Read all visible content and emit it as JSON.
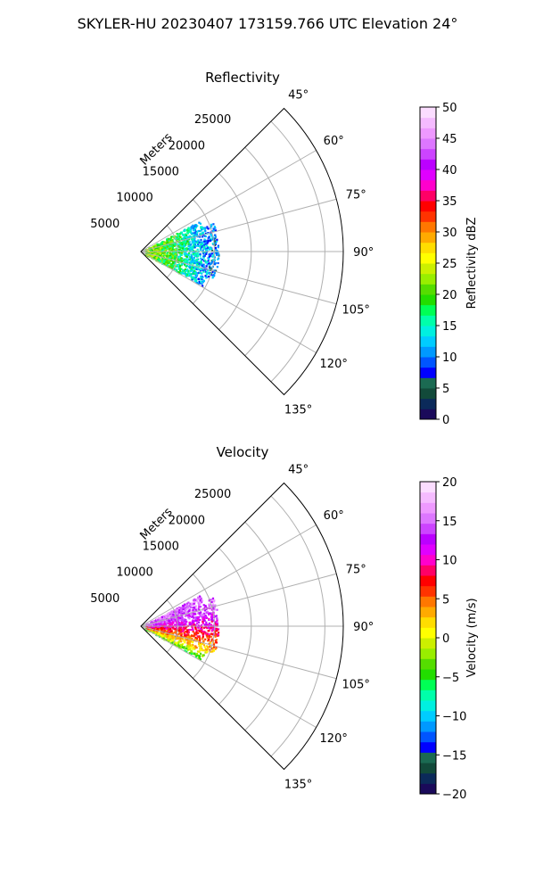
{
  "figure": {
    "suptitle": "SKYLER-HU  20230407  173159.766 UTC Elevation 24°"
  },
  "chart_data": [
    {
      "type": "heatmap",
      "subtype": "polar-sector",
      "title": "Reflectivity",
      "range_label": "Meters",
      "range_ticks": [
        5000,
        10000,
        15000,
        20000,
        25000
      ],
      "range_max": 27500,
      "azimuth_ticks": [
        "45°",
        "60°",
        "75°",
        "90°",
        "105°",
        "120°",
        "135°"
      ],
      "azimuth_range_deg": [
        45,
        135
      ],
      "grid": true,
      "colorbar": {
        "label": "Reflectivity dBZ",
        "ticks": [
          "0",
          "5",
          "10",
          "15",
          "20",
          "25",
          "30",
          "35",
          "40",
          "45",
          "50"
        ],
        "range": [
          0,
          50
        ],
        "colors": [
          "#1a0a5a",
          "#0b2a5a",
          "#124a3a",
          "#1b6a52",
          "#0000ff",
          "#0055ff",
          "#0099ff",
          "#00ccff",
          "#00f0e0",
          "#00ffaa",
          "#00ff55",
          "#22dd00",
          "#55dd00",
          "#99ee00",
          "#ccf000",
          "#ffff00",
          "#ffdd00",
          "#ffaa00",
          "#ff7700",
          "#ff3300",
          "#ff0000",
          "#ff0066",
          "#ff00cc",
          "#e000ff",
          "#bb00ff",
          "#cc44ff",
          "#dd77ff",
          "#ee99ff",
          "#f5bbff",
          "#fbddff"
        ]
      },
      "field_profile": [
        {
          "range_m": 1000,
          "value": 22
        },
        {
          "range_m": 3000,
          "value": 20
        },
        {
          "range_m": 5000,
          "value": 18
        },
        {
          "range_m": 7000,
          "value": 14
        },
        {
          "range_m": 9000,
          "value": 11
        },
        {
          "range_m": 10500,
          "value": 9
        }
      ]
    },
    {
      "type": "heatmap",
      "subtype": "polar-sector",
      "title": "Velocity",
      "range_label": "Meters",
      "range_ticks": [
        5000,
        10000,
        15000,
        20000,
        25000
      ],
      "range_max": 27500,
      "azimuth_ticks": [
        "45°",
        "60°",
        "75°",
        "90°",
        "105°",
        "120°",
        "135°"
      ],
      "azimuth_range_deg": [
        45,
        135
      ],
      "grid": true,
      "colorbar": {
        "label": "Velocity (m/s)",
        "ticks": [
          "−20",
          "−15",
          "−10",
          "−5",
          "0",
          "5",
          "10",
          "15",
          "20"
        ],
        "range": [
          -20,
          20
        ],
        "colors": [
          "#1a0a5a",
          "#0b2a5a",
          "#124a3a",
          "#1b6a52",
          "#0000ff",
          "#0055ff",
          "#0099ff",
          "#00ccff",
          "#00f0e0",
          "#00ffaa",
          "#00ff55",
          "#22dd00",
          "#55dd00",
          "#99ee00",
          "#ccf000",
          "#ffff00",
          "#ffdd00",
          "#ffaa00",
          "#ff7700",
          "#ff3300",
          "#ff0000",
          "#ff0066",
          "#ff00cc",
          "#e000ff",
          "#bb00ff",
          "#cc44ff",
          "#dd77ff",
          "#ee99ff",
          "#f5bbff",
          "#fbddff"
        ]
      },
      "field_profile": [
        {
          "azimuth_deg": 60,
          "value": 15
        },
        {
          "azimuth_deg": 75,
          "value": 14
        },
        {
          "azimuth_deg": 90,
          "value": 10
        },
        {
          "azimuth_deg": 100,
          "value": 6
        },
        {
          "azimuth_deg": 110,
          "value": 2
        },
        {
          "azimuth_deg": 118,
          "value": -4
        }
      ]
    }
  ]
}
